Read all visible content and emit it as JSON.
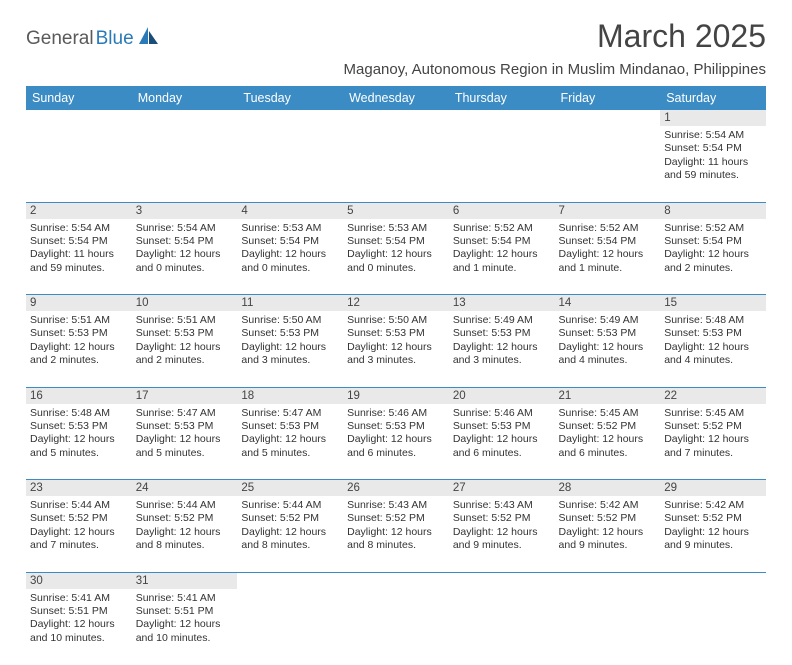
{
  "logo": {
    "part1": "General",
    "part2": "Blue"
  },
  "title": "March 2025",
  "location": "Maganoy, Autonomous Region in Muslim Mindanao, Philippines",
  "colors": {
    "header_bg": "#3b8bc4",
    "header_fg": "#ffffff",
    "daynum_bg": "#e9e9e9",
    "border": "#3b8bc4",
    "logo_gray": "#5a5a5a",
    "logo_blue": "#2a7ab8"
  },
  "weekdays": [
    "Sunday",
    "Monday",
    "Tuesday",
    "Wednesday",
    "Thursday",
    "Friday",
    "Saturday"
  ],
  "weeks": [
    [
      null,
      null,
      null,
      null,
      null,
      null,
      {
        "n": "1",
        "sr": "Sunrise: 5:54 AM",
        "ss": "Sunset: 5:54 PM",
        "dl": "Daylight: 11 hours and 59 minutes."
      }
    ],
    [
      {
        "n": "2",
        "sr": "Sunrise: 5:54 AM",
        "ss": "Sunset: 5:54 PM",
        "dl": "Daylight: 11 hours and 59 minutes."
      },
      {
        "n": "3",
        "sr": "Sunrise: 5:54 AM",
        "ss": "Sunset: 5:54 PM",
        "dl": "Daylight: 12 hours and 0 minutes."
      },
      {
        "n": "4",
        "sr": "Sunrise: 5:53 AM",
        "ss": "Sunset: 5:54 PM",
        "dl": "Daylight: 12 hours and 0 minutes."
      },
      {
        "n": "5",
        "sr": "Sunrise: 5:53 AM",
        "ss": "Sunset: 5:54 PM",
        "dl": "Daylight: 12 hours and 0 minutes."
      },
      {
        "n": "6",
        "sr": "Sunrise: 5:52 AM",
        "ss": "Sunset: 5:54 PM",
        "dl": "Daylight: 12 hours and 1 minute."
      },
      {
        "n": "7",
        "sr": "Sunrise: 5:52 AM",
        "ss": "Sunset: 5:54 PM",
        "dl": "Daylight: 12 hours and 1 minute."
      },
      {
        "n": "8",
        "sr": "Sunrise: 5:52 AM",
        "ss": "Sunset: 5:54 PM",
        "dl": "Daylight: 12 hours and 2 minutes."
      }
    ],
    [
      {
        "n": "9",
        "sr": "Sunrise: 5:51 AM",
        "ss": "Sunset: 5:53 PM",
        "dl": "Daylight: 12 hours and 2 minutes."
      },
      {
        "n": "10",
        "sr": "Sunrise: 5:51 AM",
        "ss": "Sunset: 5:53 PM",
        "dl": "Daylight: 12 hours and 2 minutes."
      },
      {
        "n": "11",
        "sr": "Sunrise: 5:50 AM",
        "ss": "Sunset: 5:53 PM",
        "dl": "Daylight: 12 hours and 3 minutes."
      },
      {
        "n": "12",
        "sr": "Sunrise: 5:50 AM",
        "ss": "Sunset: 5:53 PM",
        "dl": "Daylight: 12 hours and 3 minutes."
      },
      {
        "n": "13",
        "sr": "Sunrise: 5:49 AM",
        "ss": "Sunset: 5:53 PM",
        "dl": "Daylight: 12 hours and 3 minutes."
      },
      {
        "n": "14",
        "sr": "Sunrise: 5:49 AM",
        "ss": "Sunset: 5:53 PM",
        "dl": "Daylight: 12 hours and 4 minutes."
      },
      {
        "n": "15",
        "sr": "Sunrise: 5:48 AM",
        "ss": "Sunset: 5:53 PM",
        "dl": "Daylight: 12 hours and 4 minutes."
      }
    ],
    [
      {
        "n": "16",
        "sr": "Sunrise: 5:48 AM",
        "ss": "Sunset: 5:53 PM",
        "dl": "Daylight: 12 hours and 5 minutes."
      },
      {
        "n": "17",
        "sr": "Sunrise: 5:47 AM",
        "ss": "Sunset: 5:53 PM",
        "dl": "Daylight: 12 hours and 5 minutes."
      },
      {
        "n": "18",
        "sr": "Sunrise: 5:47 AM",
        "ss": "Sunset: 5:53 PM",
        "dl": "Daylight: 12 hours and 5 minutes."
      },
      {
        "n": "19",
        "sr": "Sunrise: 5:46 AM",
        "ss": "Sunset: 5:53 PM",
        "dl": "Daylight: 12 hours and 6 minutes."
      },
      {
        "n": "20",
        "sr": "Sunrise: 5:46 AM",
        "ss": "Sunset: 5:53 PM",
        "dl": "Daylight: 12 hours and 6 minutes."
      },
      {
        "n": "21",
        "sr": "Sunrise: 5:45 AM",
        "ss": "Sunset: 5:52 PM",
        "dl": "Daylight: 12 hours and 6 minutes."
      },
      {
        "n": "22",
        "sr": "Sunrise: 5:45 AM",
        "ss": "Sunset: 5:52 PM",
        "dl": "Daylight: 12 hours and 7 minutes."
      }
    ],
    [
      {
        "n": "23",
        "sr": "Sunrise: 5:44 AM",
        "ss": "Sunset: 5:52 PM",
        "dl": "Daylight: 12 hours and 7 minutes."
      },
      {
        "n": "24",
        "sr": "Sunrise: 5:44 AM",
        "ss": "Sunset: 5:52 PM",
        "dl": "Daylight: 12 hours and 8 minutes."
      },
      {
        "n": "25",
        "sr": "Sunrise: 5:44 AM",
        "ss": "Sunset: 5:52 PM",
        "dl": "Daylight: 12 hours and 8 minutes."
      },
      {
        "n": "26",
        "sr": "Sunrise: 5:43 AM",
        "ss": "Sunset: 5:52 PM",
        "dl": "Daylight: 12 hours and 8 minutes."
      },
      {
        "n": "27",
        "sr": "Sunrise: 5:43 AM",
        "ss": "Sunset: 5:52 PM",
        "dl": "Daylight: 12 hours and 9 minutes."
      },
      {
        "n": "28",
        "sr": "Sunrise: 5:42 AM",
        "ss": "Sunset: 5:52 PM",
        "dl": "Daylight: 12 hours and 9 minutes."
      },
      {
        "n": "29",
        "sr": "Sunrise: 5:42 AM",
        "ss": "Sunset: 5:52 PM",
        "dl": "Daylight: 12 hours and 9 minutes."
      }
    ],
    [
      {
        "n": "30",
        "sr": "Sunrise: 5:41 AM",
        "ss": "Sunset: 5:51 PM",
        "dl": "Daylight: 12 hours and 10 minutes."
      },
      {
        "n": "31",
        "sr": "Sunrise: 5:41 AM",
        "ss": "Sunset: 5:51 PM",
        "dl": "Daylight: 12 hours and 10 minutes."
      },
      null,
      null,
      null,
      null,
      null
    ]
  ]
}
